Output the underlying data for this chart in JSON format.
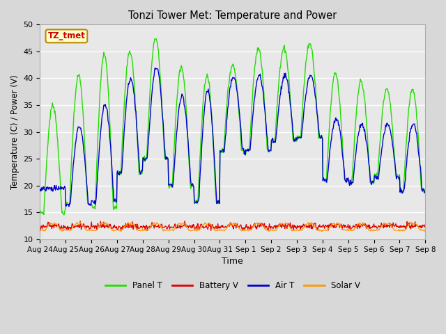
{
  "title": "Tonzi Tower Met: Temperature and Power",
  "xlabel": "Time",
  "ylabel": "Temperature (C) / Power (V)",
  "ylim": [
    10,
    50
  ],
  "yticks": [
    10,
    15,
    20,
    25,
    30,
    35,
    40,
    45,
    50
  ],
  "fig_bg": "#d8d8d8",
  "plot_bg": "#e8e8e8",
  "annotation_text": "TZ_tmet",
  "annotation_fg": "#cc0000",
  "annotation_bg": "#ffffcc",
  "annotation_border": "#bb8800",
  "panel_color": "#22dd00",
  "air_color": "#0000cc",
  "battery_color": "#dd0000",
  "solar_color": "#ff9900",
  "n_days": 15,
  "panel_t_peaks": [
    35.0,
    40.5,
    44.5,
    45.0,
    47.5,
    42.0,
    40.5,
    42.5,
    45.5,
    45.7,
    46.5,
    41.0,
    39.5,
    38.0,
    38.0
  ],
  "panel_t_troughs": [
    15.0,
    16.5,
    16.0,
    22.5,
    25.0,
    20.0,
    17.0,
    26.5,
    26.7,
    28.5,
    29.0,
    21.0,
    20.7,
    22.0,
    19.0
  ],
  "air_t_peaks": [
    19.5,
    31.0,
    35.0,
    40.0,
    42.0,
    36.5,
    37.5,
    40.5,
    40.5,
    40.5,
    40.5,
    32.5,
    31.5,
    31.5,
    31.5
  ],
  "air_t_troughs": [
    19.5,
    16.5,
    17.0,
    22.5,
    25.0,
    20.0,
    17.0,
    26.5,
    26.5,
    28.5,
    29.0,
    21.0,
    20.5,
    21.5,
    19.0
  ],
  "battery_base": 12.3,
  "battery_noise": 0.25,
  "solar_base": 11.7,
  "solar_peak_add": 1.4
}
